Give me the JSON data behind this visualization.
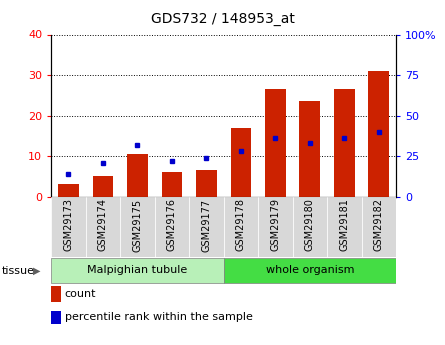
{
  "title": "GDS732 / 148953_at",
  "samples": [
    "GSM29173",
    "GSM29174",
    "GSM29175",
    "GSM29176",
    "GSM29177",
    "GSM29178",
    "GSM29179",
    "GSM29180",
    "GSM29181",
    "GSM29182"
  ],
  "counts": [
    3,
    5.2,
    10.5,
    6.2,
    6.5,
    17,
    26.5,
    23.5,
    26.5,
    31
  ],
  "percentile_ranks_pct": [
    14,
    21,
    32,
    22,
    24,
    28,
    36,
    33,
    36,
    40
  ],
  "groups": [
    {
      "label": "Malpighian tubule",
      "start": 0,
      "end": 5,
      "color": "#b8f0b8"
    },
    {
      "label": "whole organism",
      "start": 5,
      "end": 10,
      "color": "#44dd44"
    }
  ],
  "ylim_left": [
    0,
    40
  ],
  "ylim_right": [
    0,
    100
  ],
  "yticks_left": [
    0,
    10,
    20,
    30,
    40
  ],
  "yticks_right": [
    0,
    25,
    50,
    75,
    100
  ],
  "ytick_labels_right": [
    "0",
    "25",
    "50",
    "75",
    "100%"
  ],
  "bar_color": "#cc2200",
  "dot_color": "#0000cc",
  "plot_bg": "#ffffff",
  "tissue_label": "tissue",
  "legend_count": "count",
  "legend_pct": "percentile rank within the sample"
}
